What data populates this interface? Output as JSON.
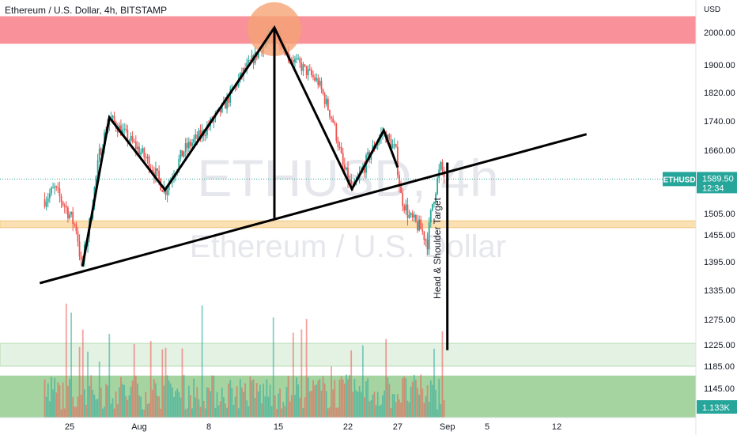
{
  "chart_data": {
    "type": "candlestick",
    "title": "Ethereum / U.S. Dollar, 4h, BITSTAMP",
    "y_unit": "USD",
    "ylim": [
      1138,
      2055
    ],
    "x_labels": [
      {
        "label": "25",
        "day": 25
      },
      {
        "label": "Aug",
        "day": 32
      },
      {
        "label": "8",
        "day": 39
      },
      {
        "label": "15",
        "day": 46
      },
      {
        "label": "22",
        "day": 53
      },
      {
        "label": "27",
        "day": 58
      },
      {
        "label": "Sep",
        "day": 63
      },
      {
        "label": "5",
        "day": 67
      },
      {
        "label": "12",
        "day": 74
      }
    ],
    "xlim_days": [
      20.7,
      78.4
    ],
    "y_ticks": [
      2000,
      1900,
      1820,
      1740,
      1660,
      1505,
      1455,
      1395,
      1335,
      1275,
      1225,
      1185,
      1145
    ],
    "watermark": {
      "symbol": "ETHUSD, 4h",
      "name": "Ethereum / U.S. Dollar"
    },
    "last_price": {
      "symbol": "ETHUSD",
      "price": "1589.50",
      "countdown": "12:34",
      "value": 1589.5,
      "color": "#26a69a"
    },
    "volume": {
      "label": "1.133K",
      "color": "#26a69a"
    },
    "path_points": [
      {
        "day": 22.5,
        "price": 1540
      },
      {
        "day": 23.5,
        "price": 1565
      },
      {
        "day": 24.5,
        "price": 1525
      },
      {
        "day": 25.7,
        "price": 1470
      },
      {
        "day": 26.2,
        "price": 1380
      },
      {
        "day": 27.0,
        "price": 1480
      },
      {
        "day": 28.0,
        "price": 1650
      },
      {
        "day": 29.0,
        "price": 1750
      },
      {
        "day": 31.0,
        "price": 1690
      },
      {
        "day": 33.0,
        "price": 1630
      },
      {
        "day": 34.6,
        "price": 1560
      },
      {
        "day": 36.5,
        "price": 1660
      },
      {
        "day": 38.5,
        "price": 1710
      },
      {
        "day": 40.5,
        "price": 1780
      },
      {
        "day": 42.5,
        "price": 1880
      },
      {
        "day": 44.5,
        "price": 1960
      },
      {
        "day": 45.6,
        "price": 2010
      },
      {
        "day": 47.0,
        "price": 1930
      },
      {
        "day": 48.5,
        "price": 1890
      },
      {
        "day": 50.0,
        "price": 1850
      },
      {
        "day": 51.5,
        "price": 1740
      },
      {
        "day": 52.5,
        "price": 1620
      },
      {
        "day": 53.5,
        "price": 1560
      },
      {
        "day": 55.0,
        "price": 1640
      },
      {
        "day": 56.5,
        "price": 1710
      },
      {
        "day": 57.8,
        "price": 1660
      },
      {
        "day": 58.3,
        "price": 1550
      },
      {
        "day": 59.2,
        "price": 1495
      },
      {
        "day": 60.3,
        "price": 1470
      },
      {
        "day": 61.0,
        "price": 1440
      },
      {
        "day": 61.5,
        "price": 1530
      },
      {
        "day": 62.3,
        "price": 1620
      },
      {
        "day": 62.8,
        "price": 1590
      }
    ],
    "resistance_zone": {
      "from": 1965,
      "to": 2050,
      "color": "#f7858f"
    },
    "support_zone": {
      "from": 1472,
      "to": 1488,
      "color": "#fbe0b4"
    },
    "volume_zone_upper": {
      "from": 1185,
      "to": 1228,
      "color": "#e3f2e3"
    },
    "volume_zone_lower": {
      "from": 1138,
      "to": 1168,
      "color": "#a5d4a0"
    },
    "peak_marker": {
      "day": 45.6,
      "price": 2010,
      "color": "#f5a274"
    },
    "pattern_lines": [
      {
        "points": [
          {
            "day": 26.3,
            "price": 1385
          },
          {
            "day": 29.0,
            "price": 1750
          },
          {
            "day": 34.6,
            "price": 1563
          },
          {
            "day": 45.6,
            "price": 2015
          },
          {
            "day": 53.4,
            "price": 1565
          },
          {
            "day": 56.6,
            "price": 1714
          },
          {
            "day": 58.0,
            "price": 1618
          }
        ]
      },
      {
        "points": [
          {
            "day": 22.0,
            "price": 1350
          },
          {
            "day": 77.0,
            "price": 1704
          }
        ]
      },
      {
        "points": [
          {
            "day": 45.6,
            "price": 2015
          },
          {
            "day": 45.6,
            "price": 1494
          }
        ]
      },
      {
        "points": [
          {
            "day": 63.0,
            "price": 1630
          },
          {
            "day": 63.0,
            "price": 1215
          }
        ]
      }
    ],
    "annotations": [
      {
        "text": "Head & Shoulder Target",
        "day": 62.3,
        "price": 1425,
        "rotation": -90
      }
    ]
  }
}
